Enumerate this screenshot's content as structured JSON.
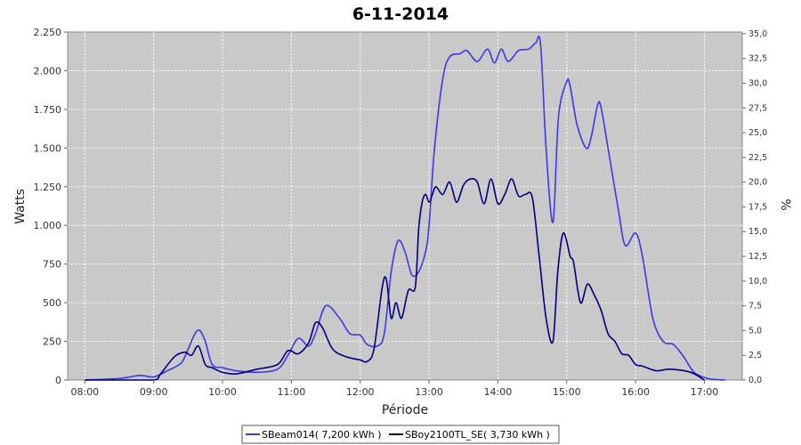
{
  "chart_data": {
    "type": "line",
    "title": "6-11-2014",
    "xlabel": "Période",
    "ylabel": "Watts",
    "ylabel_right": "%",
    "grid": true,
    "legend_position": "bottom",
    "xlim": [
      7.75,
      17.55
    ],
    "ylim": [
      0,
      2250
    ],
    "ylim_right": [
      0,
      35.17
    ],
    "x_ticks": [
      {
        "value": 8,
        "label": "08:00"
      },
      {
        "value": 9,
        "label": "09:00"
      },
      {
        "value": 10,
        "label": "10:00"
      },
      {
        "value": 11,
        "label": "11:00"
      },
      {
        "value": 12,
        "label": "12:00"
      },
      {
        "value": 13,
        "label": "13:00"
      },
      {
        "value": 14,
        "label": "14:00"
      },
      {
        "value": 15,
        "label": "15:00"
      },
      {
        "value": 16,
        "label": "16:00"
      },
      {
        "value": 17,
        "label": "17:00"
      }
    ],
    "y_ticks": [
      {
        "value": 0,
        "label": "0"
      },
      {
        "value": 250,
        "label": "250"
      },
      {
        "value": 500,
        "label": "500"
      },
      {
        "value": 750,
        "label": "750"
      },
      {
        "value": 1000,
        "label": "1.000"
      },
      {
        "value": 1250,
        "label": "1.250"
      },
      {
        "value": 1500,
        "label": "1.500"
      },
      {
        "value": 1750,
        "label": "1.750"
      },
      {
        "value": 2000,
        "label": "2.000"
      },
      {
        "value": 2250,
        "label": "2.250"
      }
    ],
    "y_ticks_right": [
      {
        "value": 0,
        "label": "0,0"
      },
      {
        "value": 2.5,
        "label": "2,5"
      },
      {
        "value": 5,
        "label": "5,0"
      },
      {
        "value": 7.5,
        "label": "7,5"
      },
      {
        "value": 10,
        "label": "10,0"
      },
      {
        "value": 12.5,
        "label": "12,5"
      },
      {
        "value": 15,
        "label": "15,0"
      },
      {
        "value": 17.5,
        "label": "17,5"
      },
      {
        "value": 20,
        "label": "20,0"
      },
      {
        "value": 22.5,
        "label": "22,5"
      },
      {
        "value": 25,
        "label": "25,0"
      },
      {
        "value": 27.5,
        "label": "27,5"
      },
      {
        "value": 30,
        "label": "30,0"
      },
      {
        "value": 32.5,
        "label": "32,5"
      },
      {
        "value": 35,
        "label": "35,0"
      }
    ],
    "series": [
      {
        "name": "SBeam014( 7,200 kWh )",
        "color": "#3a3ae8",
        "x": [
          8.0,
          8.5,
          8.8,
          9.0,
          9.2,
          9.4,
          9.5,
          9.6,
          9.67,
          9.75,
          9.85,
          10.0,
          10.2,
          10.5,
          10.8,
          10.95,
          11.1,
          11.25,
          11.35,
          11.5,
          11.7,
          11.85,
          12.0,
          12.1,
          12.25,
          12.35,
          12.45,
          12.55,
          12.65,
          12.75,
          12.85,
          12.95,
          13.0,
          13.08,
          13.2,
          13.3,
          13.45,
          13.55,
          13.7,
          13.85,
          13.95,
          14.05,
          14.15,
          14.3,
          14.45,
          14.55,
          14.62,
          14.7,
          14.8,
          14.88,
          15.0,
          15.05,
          15.15,
          15.28,
          15.35,
          15.45,
          15.5,
          15.6,
          15.75,
          15.85,
          16.0,
          16.1,
          16.25,
          16.4,
          16.55,
          16.7,
          16.85,
          17.05,
          17.3
        ],
        "y": [
          0,
          10,
          30,
          20,
          60,
          110,
          200,
          300,
          320,
          250,
          100,
          80,
          60,
          50,
          70,
          160,
          270,
          220,
          300,
          480,
          400,
          300,
          290,
          230,
          220,
          300,
          700,
          900,
          830,
          680,
          700,
          830,
          1000,
          1500,
          1950,
          2090,
          2110,
          2130,
          2060,
          2140,
          2050,
          2140,
          2060,
          2130,
          2140,
          2180,
          2170,
          1500,
          1020,
          1700,
          1930,
          1900,
          1650,
          1500,
          1560,
          1780,
          1760,
          1500,
          1100,
          870,
          950,
          800,
          400,
          250,
          230,
          150,
          50,
          10,
          0
        ]
      },
      {
        "name": "SBoy2100TL_SE( 3,730 kWh )",
        "color": "#00007f",
        "x": [
          8.0,
          8.5,
          9.0,
          9.1,
          9.3,
          9.45,
          9.55,
          9.65,
          9.75,
          9.85,
          10.0,
          10.2,
          10.5,
          10.8,
          10.95,
          11.1,
          11.25,
          11.35,
          11.45,
          11.6,
          11.8,
          12.0,
          12.1,
          12.2,
          12.32,
          12.38,
          12.45,
          12.52,
          12.6,
          12.7,
          12.8,
          12.85,
          12.9,
          12.95,
          13.0,
          13.05,
          13.1,
          13.2,
          13.3,
          13.4,
          13.5,
          13.6,
          13.7,
          13.8,
          13.9,
          14.0,
          14.1,
          14.2,
          14.3,
          14.4,
          14.5,
          14.6,
          14.7,
          14.8,
          14.87,
          14.95,
          15.05,
          15.1,
          15.2,
          15.3,
          15.4,
          15.5,
          15.6,
          15.7,
          15.8,
          15.9,
          16.0,
          16.1,
          16.3,
          16.5,
          16.8,
          17.0
        ],
        "y": [
          0,
          0,
          0,
          40,
          150,
          180,
          160,
          220,
          100,
          80,
          50,
          40,
          70,
          100,
          190,
          170,
          240,
          370,
          340,
          200,
          150,
          130,
          120,
          200,
          600,
          650,
          400,
          500,
          400,
          580,
          600,
          980,
          1150,
          1200,
          1150,
          1200,
          1250,
          1200,
          1280,
          1150,
          1260,
          1300,
          1280,
          1140,
          1300,
          1140,
          1200,
          1300,
          1190,
          1200,
          1180,
          800,
          400,
          250,
          700,
          950,
          800,
          760,
          500,
          620,
          550,
          450,
          300,
          250,
          170,
          160,
          100,
          90,
          60,
          70,
          50,
          0
        ]
      }
    ]
  }
}
